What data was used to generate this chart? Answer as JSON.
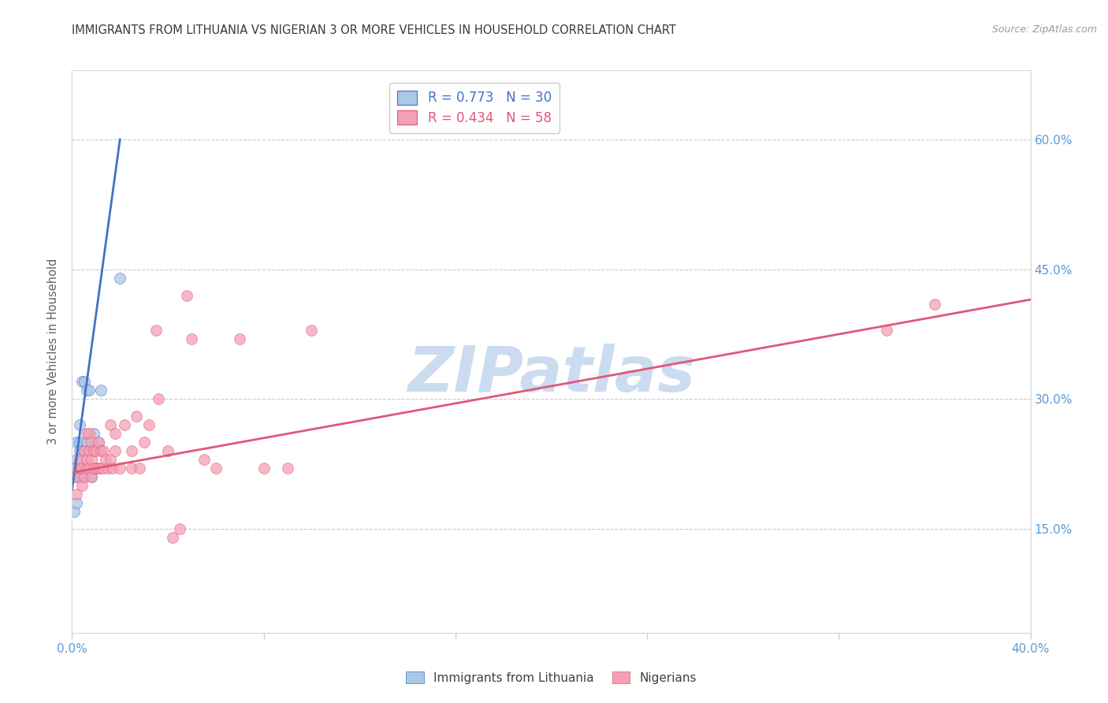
{
  "title": "IMMIGRANTS FROM LITHUANIA VS NIGERIAN 3 OR MORE VEHICLES IN HOUSEHOLD CORRELATION CHART",
  "source": "Source: ZipAtlas.com",
  "ylabel": "3 or more Vehicles in Household",
  "right_yticks": [
    0.15,
    0.3,
    0.45,
    0.6
  ],
  "right_yticklabels": [
    "15.0%",
    "30.0%",
    "45.0%",
    "60.0%"
  ],
  "xlim": [
    0.0,
    0.4
  ],
  "ylim": [
    0.03,
    0.68
  ],
  "color_lithuania": "#a8c8e8",
  "color_nigeria": "#f4a0b5",
  "color_line_lithuania": "#4472c4",
  "color_line_nigeria": "#e05878",
  "color_axis_labels": "#5b9bd5",
  "watermark_text": "ZIPatlas",
  "watermark_color": "#ccdcf0",
  "lith_x": [
    0.001,
    0.001,
    0.001,
    0.002,
    0.002,
    0.002,
    0.002,
    0.003,
    0.003,
    0.003,
    0.003,
    0.003,
    0.004,
    0.004,
    0.004,
    0.004,
    0.005,
    0.005,
    0.005,
    0.006,
    0.006,
    0.007,
    0.007,
    0.008,
    0.008,
    0.009,
    0.01,
    0.011,
    0.012,
    0.02
  ],
  "lith_y": [
    0.21,
    0.22,
    0.17,
    0.23,
    0.22,
    0.18,
    0.25,
    0.22,
    0.24,
    0.21,
    0.25,
    0.27,
    0.22,
    0.24,
    0.21,
    0.32,
    0.22,
    0.32,
    0.24,
    0.25,
    0.31,
    0.22,
    0.31,
    0.21,
    0.24,
    0.26,
    0.22,
    0.25,
    0.31,
    0.44
  ],
  "nig_x": [
    0.001,
    0.002,
    0.002,
    0.003,
    0.003,
    0.004,
    0.004,
    0.005,
    0.005,
    0.006,
    0.006,
    0.006,
    0.007,
    0.007,
    0.007,
    0.008,
    0.008,
    0.008,
    0.009,
    0.009,
    0.01,
    0.01,
    0.011,
    0.011,
    0.012,
    0.012,
    0.013,
    0.013,
    0.014,
    0.015,
    0.016,
    0.016,
    0.017,
    0.018,
    0.018,
    0.02,
    0.022,
    0.025,
    0.025,
    0.027,
    0.028,
    0.03,
    0.032,
    0.035,
    0.036,
    0.04,
    0.042,
    0.045,
    0.048,
    0.05,
    0.055,
    0.06,
    0.07,
    0.08,
    0.09,
    0.1,
    0.34,
    0.36
  ],
  "nig_y": [
    0.22,
    0.19,
    0.21,
    0.22,
    0.23,
    0.2,
    0.22,
    0.21,
    0.24,
    0.22,
    0.23,
    0.26,
    0.22,
    0.24,
    0.26,
    0.21,
    0.23,
    0.25,
    0.22,
    0.24,
    0.22,
    0.24,
    0.22,
    0.25,
    0.22,
    0.24,
    0.22,
    0.24,
    0.23,
    0.22,
    0.23,
    0.27,
    0.22,
    0.24,
    0.26,
    0.22,
    0.27,
    0.22,
    0.24,
    0.28,
    0.22,
    0.25,
    0.27,
    0.38,
    0.3,
    0.24,
    0.14,
    0.15,
    0.42,
    0.37,
    0.23,
    0.22,
    0.37,
    0.22,
    0.22,
    0.38,
    0.38,
    0.41
  ],
  "lith_line_x": [
    0.0,
    0.02
  ],
  "lith_line_y": [
    0.195,
    0.6
  ],
  "nig_line_x": [
    0.0,
    0.4
  ],
  "nig_line_y": [
    0.215,
    0.415
  ]
}
